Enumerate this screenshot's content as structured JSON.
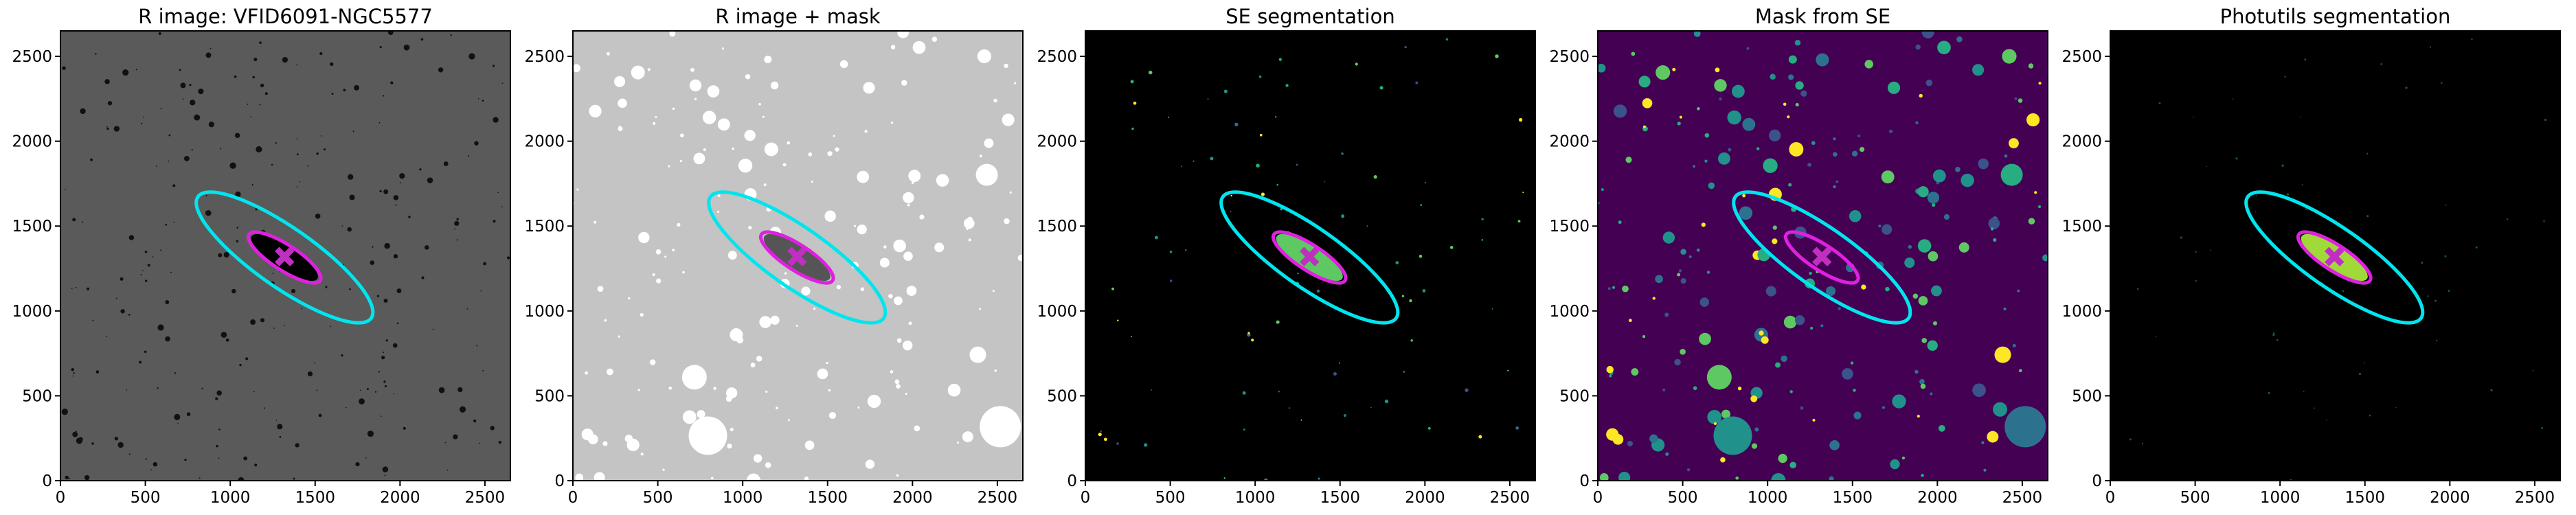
{
  "chart_data": [
    {
      "type": "image",
      "title": "R image: VFID6091-NGC5577",
      "background": "#5a5a5a",
      "xlim": [
        0,
        2650
      ],
      "ylim": [
        0,
        2650
      ],
      "xticks": [
        0,
        500,
        1000,
        1500,
        2000,
        2500
      ],
      "yticks": [
        0,
        500,
        1000,
        1500,
        2000,
        2500
      ],
      "ellipses": [
        {
          "color": "#00e5ee",
          "x": 1320,
          "y": 1315,
          "a": 623,
          "b": 175,
          "angle": -35
        },
        {
          "color": "#e020e0",
          "x": 1320,
          "y": 1315,
          "a": 250,
          "b": 75,
          "angle": -33
        }
      ],
      "marker": {
        "color": "#c030c0",
        "x": 1320,
        "y": 1320
      }
    },
    {
      "type": "image",
      "title": "R image + mask",
      "background": "#c4c4c4",
      "xlim": [
        0,
        2650
      ],
      "ylim": [
        0,
        2650
      ],
      "xticks": [
        0,
        500,
        1000,
        1500,
        2000,
        2500
      ],
      "yticks": [
        0,
        500,
        1000,
        1500,
        2000,
        2500
      ],
      "ellipses": [
        {
          "color": "#00e5ee",
          "x": 1320,
          "y": 1315,
          "a": 623,
          "b": 175,
          "angle": -35
        },
        {
          "color": "#e020e0",
          "x": 1320,
          "y": 1315,
          "a": 250,
          "b": 75,
          "angle": -33
        }
      ],
      "marker": {
        "color": "#c030c0",
        "x": 1320,
        "y": 1320
      }
    },
    {
      "type": "image",
      "title": "SE segmentation",
      "background": "#000000",
      "xlim": [
        0,
        2650
      ],
      "ylim": [
        0,
        2650
      ],
      "xticks": [
        0,
        500,
        1000,
        1500,
        2000,
        2500
      ],
      "yticks": [
        0,
        500,
        1000,
        1500,
        2000,
        2500
      ],
      "ellipses": [
        {
          "color": "#00e5ee",
          "x": 1320,
          "y": 1315,
          "a": 623,
          "b": 175,
          "angle": -35
        },
        {
          "color": "#e020e0",
          "x": 1320,
          "y": 1315,
          "a": 250,
          "b": 75,
          "angle": -33
        }
      ],
      "marker": {
        "color": "#c030c0",
        "x": 1320,
        "y": 1320
      }
    },
    {
      "type": "image",
      "title": "Mask from SE",
      "background": "#440154",
      "xlim": [
        0,
        2650
      ],
      "ylim": [
        0,
        2650
      ],
      "xticks": [
        0,
        500,
        1000,
        1500,
        2000,
        2500
      ],
      "yticks": [
        0,
        500,
        1000,
        1500,
        2000,
        2500
      ],
      "ellipses": [
        {
          "color": "#00e5ee",
          "x": 1320,
          "y": 1315,
          "a": 623,
          "b": 175,
          "angle": -35
        },
        {
          "color": "#e020e0",
          "x": 1320,
          "y": 1315,
          "a": 250,
          "b": 75,
          "angle": -33
        }
      ],
      "marker": {
        "color": "#c030c0",
        "x": 1320,
        "y": 1320
      }
    },
    {
      "type": "image",
      "title": "Photutils segmentation",
      "background": "#000000",
      "xlim": [
        0,
        2650
      ],
      "ylim": [
        0,
        2650
      ],
      "xticks": [
        0,
        500,
        1000,
        1500,
        2000,
        2500
      ],
      "yticks": [
        0,
        500,
        1000,
        1500,
        2000,
        2500
      ],
      "ellipses": [
        {
          "color": "#00e5ee",
          "x": 1320,
          "y": 1315,
          "a": 623,
          "b": 175,
          "angle": -35
        },
        {
          "color": "#e020e0",
          "x": 1320,
          "y": 1315,
          "a": 250,
          "b": 75,
          "angle": -33
        }
      ],
      "marker": {
        "color": "#c030c0",
        "x": 1320,
        "y": 1320
      }
    }
  ]
}
